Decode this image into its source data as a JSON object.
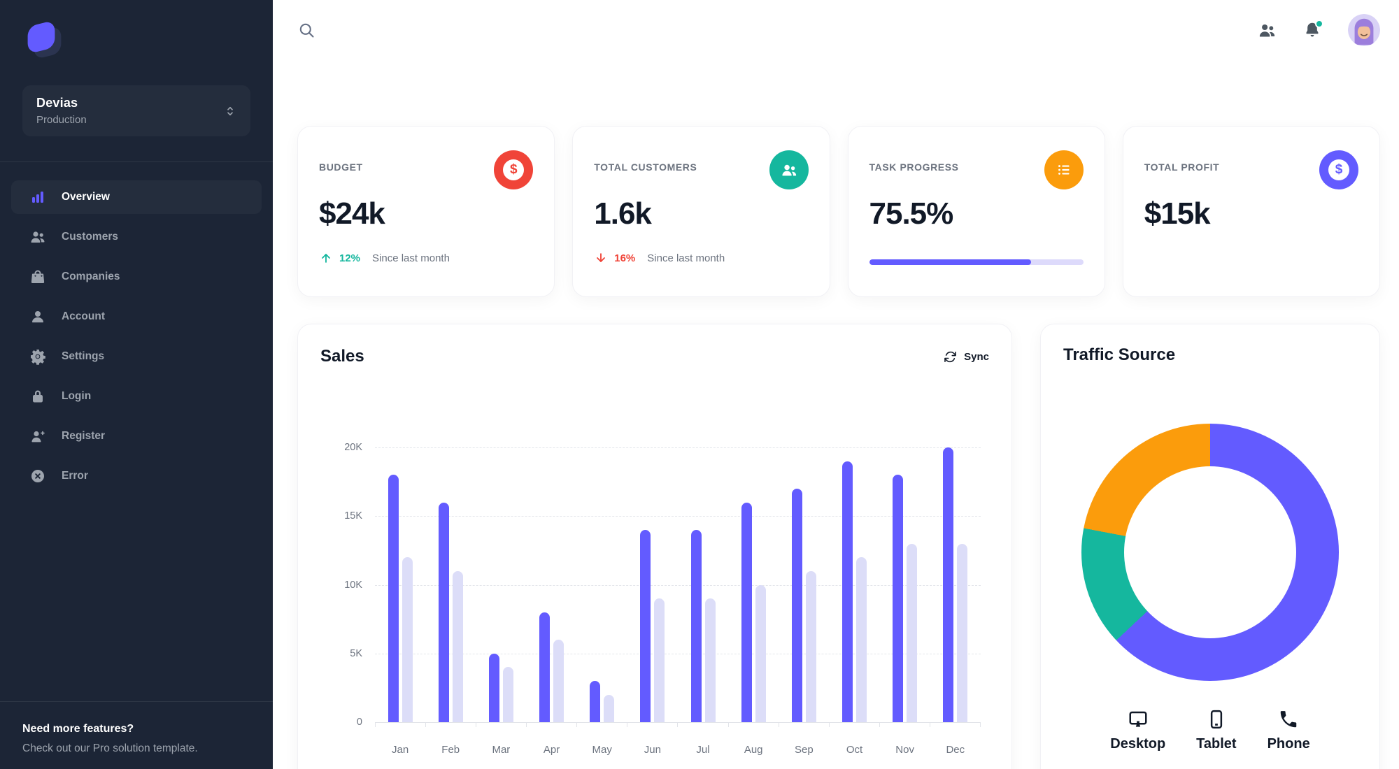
{
  "colors": {
    "sidebar_bg": "#1C2536",
    "primary": "#635BFF",
    "success": "#15B79E",
    "danger": "#F04438",
    "warning": "#FB9C0C",
    "muted_text": "#6C737F",
    "notification_dot": "#15B79E"
  },
  "sidebar": {
    "workspace": {
      "name": "Devias",
      "env": "Production"
    },
    "items": [
      {
        "label": "Overview",
        "icon": "chart-bar-icon",
        "active": true
      },
      {
        "label": "Customers",
        "icon": "users-icon"
      },
      {
        "label": "Companies",
        "icon": "shopping-bag-icon"
      },
      {
        "label": "Account",
        "icon": "user-icon"
      },
      {
        "label": "Settings",
        "icon": "gear-icon"
      },
      {
        "label": "Login",
        "icon": "lock-icon"
      },
      {
        "label": "Register",
        "icon": "user-plus-icon"
      },
      {
        "label": "Error",
        "icon": "x-circle-icon"
      }
    ],
    "footer": {
      "title": "Need more features?",
      "subtitle": "Check out our Pro solution template."
    }
  },
  "topbar": {
    "icons": [
      "search-icon",
      "users-icon",
      "bell-icon",
      "avatar"
    ]
  },
  "stats": [
    {
      "label": "BUDGET",
      "value": "$24k",
      "icon": "currency-dollar-icon",
      "icon_glyph": "$",
      "icon_bg": "#F04438",
      "trend_dir": "up",
      "trend_value": "12%",
      "trend_color": "#15B79E",
      "caption": "Since last month"
    },
    {
      "label": "TOTAL CUSTOMERS",
      "value": "1.6k",
      "icon": "users-icon",
      "icon_bg": "#15B79E",
      "trend_dir": "down",
      "trend_value": "16%",
      "trend_color": "#F04438",
      "caption": "Since last month"
    },
    {
      "label": "TASK PROGRESS",
      "value": "75.5%",
      "icon": "list-bullet-icon",
      "icon_bg": "#FB9C0C",
      "progress": 75.5
    },
    {
      "label": "TOTAL PROFIT",
      "value": "$15k",
      "icon": "currency-dollar-icon",
      "icon_glyph": "$",
      "icon_bg": "#635BFF"
    }
  ],
  "sales": {
    "title": "Sales",
    "sync_label": "Sync"
  },
  "traffic": {
    "title": "Traffic Source",
    "devices": [
      {
        "label": "Desktop",
        "icon": "desktop-icon"
      },
      {
        "label": "Tablet",
        "icon": "tablet-icon"
      },
      {
        "label": "Phone",
        "icon": "phone-icon"
      }
    ]
  },
  "chart_data": [
    {
      "type": "bar",
      "title": "Sales",
      "categories": [
        "Jan",
        "Feb",
        "Mar",
        "Apr",
        "May",
        "Jun",
        "Jul",
        "Aug",
        "Sep",
        "Oct",
        "Nov",
        "Dec"
      ],
      "series": [
        {
          "name": "primary",
          "values": [
            18,
            16,
            5,
            8,
            3,
            14,
            14,
            16,
            17,
            19,
            18,
            20
          ]
        },
        {
          "name": "secondary",
          "values": [
            12,
            11,
            4,
            6,
            2,
            9,
            9,
            10,
            11,
            12,
            13,
            13
          ]
        }
      ],
      "unit": "K",
      "ylim": [
        0,
        20
      ],
      "yticks": [
        "0",
        "5K",
        "10K",
        "15K",
        "20K"
      ],
      "grid": true,
      "legend": "none",
      "colors": [
        "#635BFF",
        "#DCDDF8"
      ]
    },
    {
      "type": "donut",
      "title": "Traffic Source",
      "labels": [
        "Desktop",
        "Tablet",
        "Phone"
      ],
      "values": [
        63,
        15,
        22
      ],
      "colors": [
        "#635BFF",
        "#15B79E",
        "#FB9C0C"
      ]
    }
  ]
}
